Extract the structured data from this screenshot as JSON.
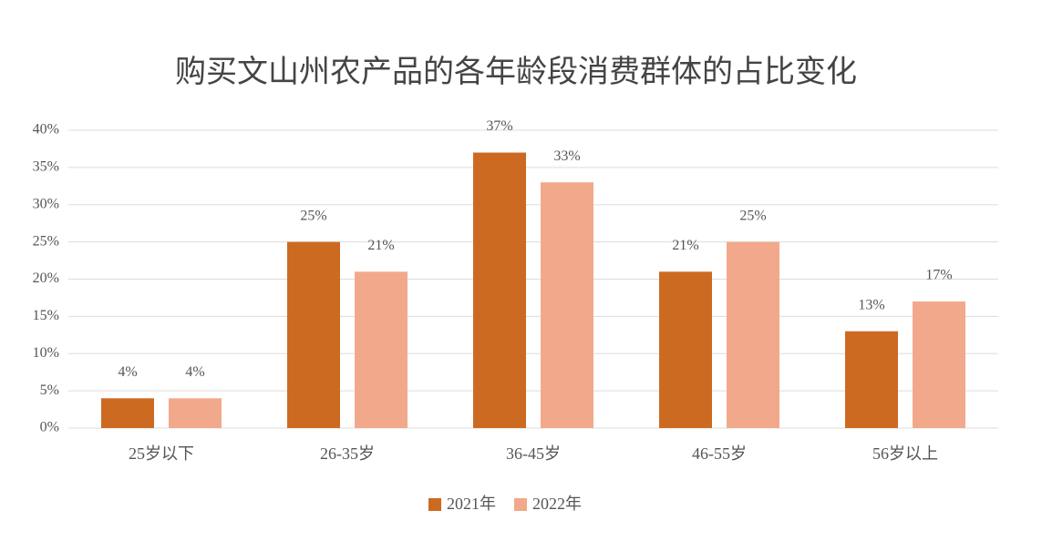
{
  "chart_data": {
    "type": "bar",
    "title": "购买文山州农产品的各年龄段消费群体的占比变化",
    "categories": [
      "25岁以下",
      "26-35岁",
      "36-45岁",
      "46-55岁",
      "56岁以上"
    ],
    "series": [
      {
        "name": "2021年",
        "color": "#cd6a22",
        "values": [
          4,
          25,
          37,
          21,
          13
        ],
        "value_labels": [
          "4%",
          "25%",
          "37%",
          "21%",
          "13%"
        ]
      },
      {
        "name": "2022年",
        "color": "#f2a98b",
        "values": [
          4,
          21,
          33,
          25,
          17
        ],
        "value_labels": [
          "4%",
          "21%",
          "33%",
          "25%",
          "17%"
        ]
      }
    ],
    "ylim": [
      0,
      40
    ],
    "yticks": [
      {
        "value": 0,
        "label": "0%"
      },
      {
        "value": 5,
        "label": "5%"
      },
      {
        "value": 10,
        "label": "10%"
      },
      {
        "value": 15,
        "label": "15%"
      },
      {
        "value": 20,
        "label": "20%"
      },
      {
        "value": 25,
        "label": "25%"
      },
      {
        "value": 30,
        "label": "30%"
      },
      {
        "value": 35,
        "label": "35%"
      },
      {
        "value": 40,
        "label": "40%"
      }
    ],
    "grid": true,
    "legend": "bottom"
  }
}
